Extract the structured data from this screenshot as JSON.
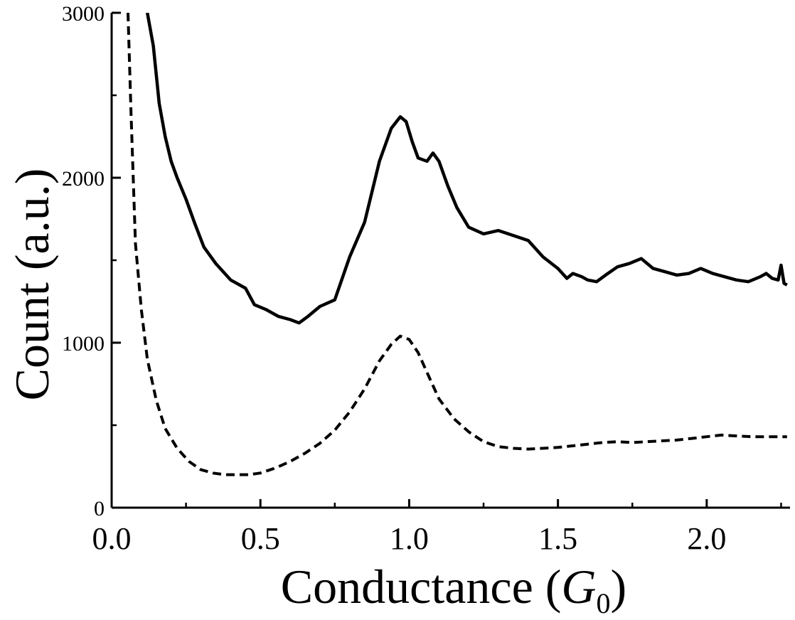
{
  "chart_data": {
    "type": "line",
    "title": "",
    "xlabel": "Conductance (",
    "xlabel_symbol": "G",
    "xlabel_subscript": "0",
    "xlabel_suffix": ")",
    "ylabel": "Count (a.u.)",
    "xlim": [
      0.0,
      2.28
    ],
    "ylim": [
      0,
      3000
    ],
    "x_ticks": [
      "0.0",
      "0.5",
      "1.0",
      "1.5",
      "2.0"
    ],
    "x_tick_values": [
      0.0,
      0.5,
      1.0,
      1.5,
      2.0
    ],
    "y_ticks": [
      "0",
      "1000",
      "2000",
      "3000"
    ],
    "y_tick_values": [
      0,
      1000,
      2000,
      3000
    ],
    "grid": false,
    "legend": "none",
    "series": [
      {
        "style": "solid",
        "color": "#000000",
        "x": [
          0.12,
          0.14,
          0.16,
          0.18,
          0.2,
          0.22,
          0.25,
          0.28,
          0.31,
          0.35,
          0.4,
          0.45,
          0.48,
          0.52,
          0.56,
          0.6,
          0.63,
          0.66,
          0.7,
          0.75,
          0.8,
          0.85,
          0.9,
          0.94,
          0.97,
          0.99,
          1.01,
          1.03,
          1.06,
          1.08,
          1.1,
          1.13,
          1.16,
          1.2,
          1.25,
          1.3,
          1.35,
          1.4,
          1.45,
          1.5,
          1.53,
          1.55,
          1.58,
          1.6,
          1.63,
          1.66,
          1.7,
          1.74,
          1.78,
          1.82,
          1.86,
          1.9,
          1.94,
          1.98,
          2.02,
          2.06,
          2.1,
          2.14,
          2.18,
          2.2,
          2.22,
          2.24,
          2.25,
          2.26,
          2.27
        ],
        "values": [
          3000,
          2800,
          2450,
          2250,
          2100,
          2000,
          1870,
          1720,
          1580,
          1480,
          1380,
          1330,
          1230,
          1200,
          1160,
          1140,
          1120,
          1160,
          1220,
          1260,
          1520,
          1730,
          2100,
          2300,
          2370,
          2340,
          2220,
          2120,
          2100,
          2150,
          2100,
          1950,
          1820,
          1700,
          1660,
          1680,
          1650,
          1620,
          1520,
          1450,
          1390,
          1420,
          1400,
          1380,
          1370,
          1410,
          1460,
          1480,
          1510,
          1450,
          1430,
          1410,
          1420,
          1450,
          1420,
          1400,
          1380,
          1370,
          1400,
          1420,
          1390,
          1380,
          1470,
          1360,
          1350
        ]
      },
      {
        "style": "dashed",
        "color": "#000000",
        "x": [
          0.055,
          0.065,
          0.08,
          0.1,
          0.12,
          0.15,
          0.18,
          0.22,
          0.26,
          0.3,
          0.34,
          0.38,
          0.42,
          0.46,
          0.5,
          0.55,
          0.6,
          0.65,
          0.7,
          0.75,
          0.8,
          0.85,
          0.9,
          0.94,
          0.97,
          1.0,
          1.03,
          1.06,
          1.1,
          1.15,
          1.2,
          1.25,
          1.3,
          1.35,
          1.4,
          1.45,
          1.5,
          1.55,
          1.6,
          1.65,
          1.7,
          1.75,
          1.8,
          1.85,
          1.9,
          1.95,
          2.0,
          2.05,
          2.1,
          2.15,
          2.2,
          2.25,
          2.27
        ],
        "values": [
          3000,
          2400,
          1600,
          1200,
          900,
          650,
          480,
          360,
          280,
          230,
          210,
          200,
          200,
          200,
          210,
          240,
          280,
          330,
          390,
          470,
          580,
          720,
          890,
          990,
          1040,
          1020,
          940,
          820,
          660,
          540,
          460,
          400,
          370,
          360,
          355,
          360,
          365,
          375,
          385,
          395,
          400,
          395,
          400,
          405,
          410,
          420,
          430,
          440,
          435,
          430,
          430,
          430,
          430
        ]
      }
    ]
  }
}
